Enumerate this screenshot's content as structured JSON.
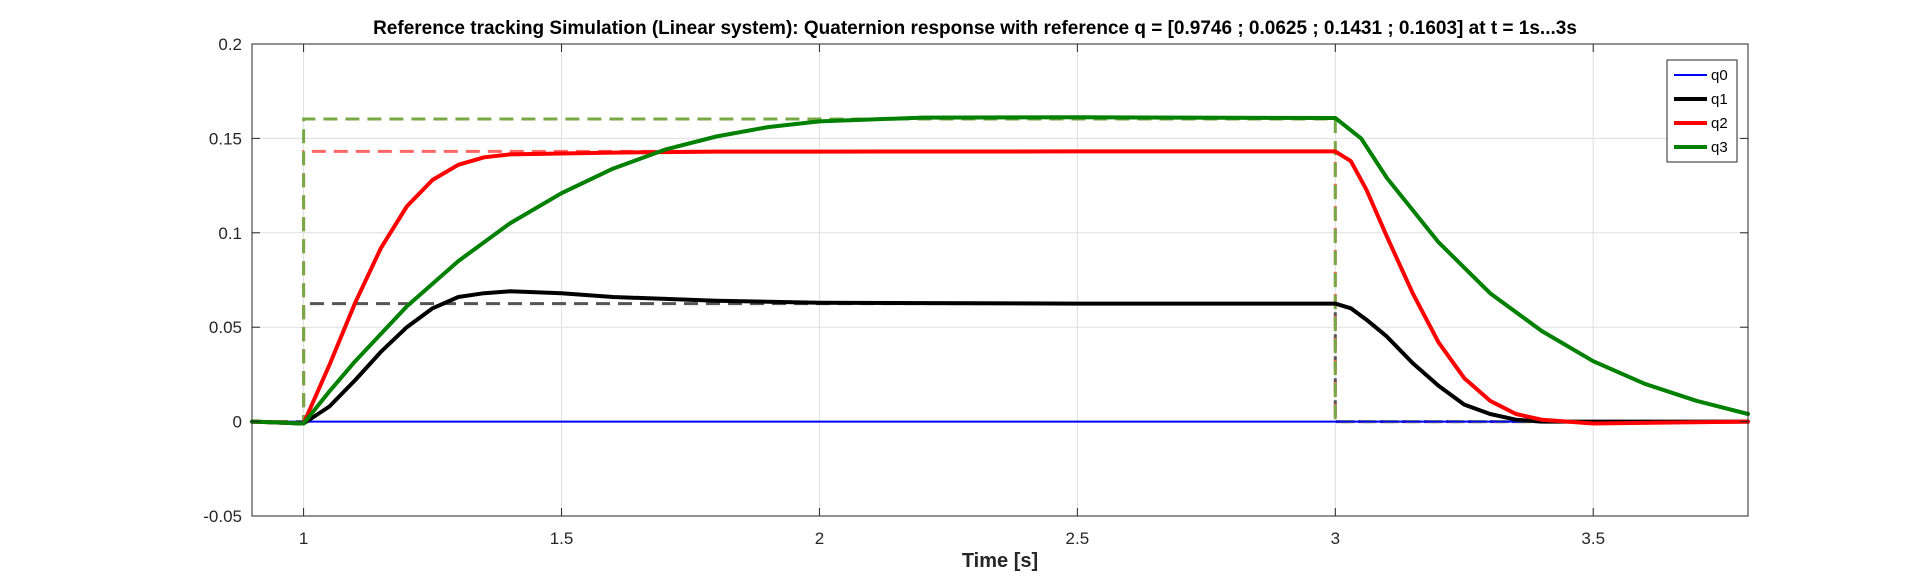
{
  "chart_data": {
    "type": "line",
    "title": "Reference tracking Simulation (Linear system): Quaternion response with reference q = [0.9746 ; 0.0625 ; 0.1431 ; 0.1603] at t = 1s...3s",
    "xlabel": "Time [s]",
    "ylabel": "",
    "xlim": [
      0.9,
      3.8
    ],
    "ylim": [
      -0.05,
      0.2
    ],
    "xticks": [
      1,
      1.5,
      2,
      2.5,
      3,
      3.5
    ],
    "xtick_labels": [
      "1",
      "1.5",
      "2",
      "2.5",
      "3",
      "3.5"
    ],
    "yticks": [
      -0.05,
      0,
      0.05,
      0.1,
      0.15,
      0.2
    ],
    "ytick_labels": [
      "-0.05",
      "0",
      "0.05",
      "0.1",
      "0.15",
      "0.2"
    ],
    "grid": true,
    "legend_position": "top-right",
    "series": [
      {
        "name": "q0",
        "color": "#0000ff",
        "style": "solid",
        "x": [
          0.9,
          3.8
        ],
        "y": [
          0,
          0
        ]
      },
      {
        "name": "q1",
        "color": "#000000",
        "style": "solid",
        "x": [
          0.9,
          1.0,
          1.05,
          1.1,
          1.15,
          1.2,
          1.25,
          1.3,
          1.35,
          1.4,
          1.5,
          1.6,
          1.8,
          2.0,
          2.5,
          3.0,
          3.03,
          3.06,
          3.1,
          3.15,
          3.2,
          3.25,
          3.3,
          3.35,
          3.4,
          3.5,
          3.8
        ],
        "y": [
          0,
          -0.001,
          0.008,
          0.022,
          0.037,
          0.05,
          0.06,
          0.066,
          0.068,
          0.069,
          0.068,
          0.066,
          0.064,
          0.063,
          0.0625,
          0.0625,
          0.06,
          0.054,
          0.045,
          0.031,
          0.019,
          0.009,
          0.004,
          0.001,
          0.0,
          0.0,
          0.0
        ]
      },
      {
        "name": "q2",
        "color": "#ff0000",
        "style": "solid",
        "x": [
          0.9,
          1.0,
          1.05,
          1.1,
          1.15,
          1.2,
          1.25,
          1.3,
          1.35,
          1.4,
          1.5,
          1.6,
          1.8,
          2.0,
          2.5,
          3.0,
          3.03,
          3.06,
          3.1,
          3.15,
          3.2,
          3.25,
          3.3,
          3.35,
          3.4,
          3.5,
          3.8
        ],
        "y": [
          0,
          -0.001,
          0.03,
          0.063,
          0.092,
          0.114,
          0.128,
          0.136,
          0.14,
          0.1415,
          0.142,
          0.1425,
          0.143,
          0.143,
          0.1431,
          0.1431,
          0.138,
          0.123,
          0.098,
          0.068,
          0.042,
          0.023,
          0.011,
          0.004,
          0.001,
          -0.001,
          0.0
        ]
      },
      {
        "name": "q3",
        "color": "#008000",
        "style": "solid",
        "x": [
          0.9,
          1.0,
          1.05,
          1.1,
          1.2,
          1.3,
          1.4,
          1.5,
          1.6,
          1.7,
          1.8,
          1.9,
          2.0,
          2.2,
          2.5,
          3.0,
          3.05,
          3.1,
          3.2,
          3.3,
          3.4,
          3.5,
          3.6,
          3.7,
          3.8
        ],
        "y": [
          0,
          -0.001,
          0.016,
          0.032,
          0.061,
          0.085,
          0.105,
          0.121,
          0.134,
          0.144,
          0.151,
          0.156,
          0.159,
          0.161,
          0.1612,
          0.1608,
          0.15,
          0.129,
          0.095,
          0.068,
          0.048,
          0.032,
          0.02,
          0.011,
          0.004
        ]
      },
      {
        "name": "",
        "color": "#555555",
        "style": "dashed",
        "x": [
          0.9,
          1.0,
          1.0,
          3.0,
          3.0,
          3.8
        ],
        "y": [
          0,
          0,
          0.0625,
          0.0625,
          0,
          0
        ]
      },
      {
        "name": "",
        "color": "#ff6666",
        "style": "dashed",
        "x": [
          0.9,
          1.0,
          1.0,
          3.0,
          3.0,
          3.8
        ],
        "y": [
          0,
          0,
          0.1431,
          0.1431,
          0,
          0
        ]
      },
      {
        "name": "",
        "color": "#77aa44",
        "style": "dashed",
        "x": [
          0.9,
          1.0,
          1.0,
          3.0,
          3.0,
          3.8
        ],
        "y": [
          0,
          0,
          0.1603,
          0.1603,
          0,
          0
        ]
      }
    ]
  }
}
